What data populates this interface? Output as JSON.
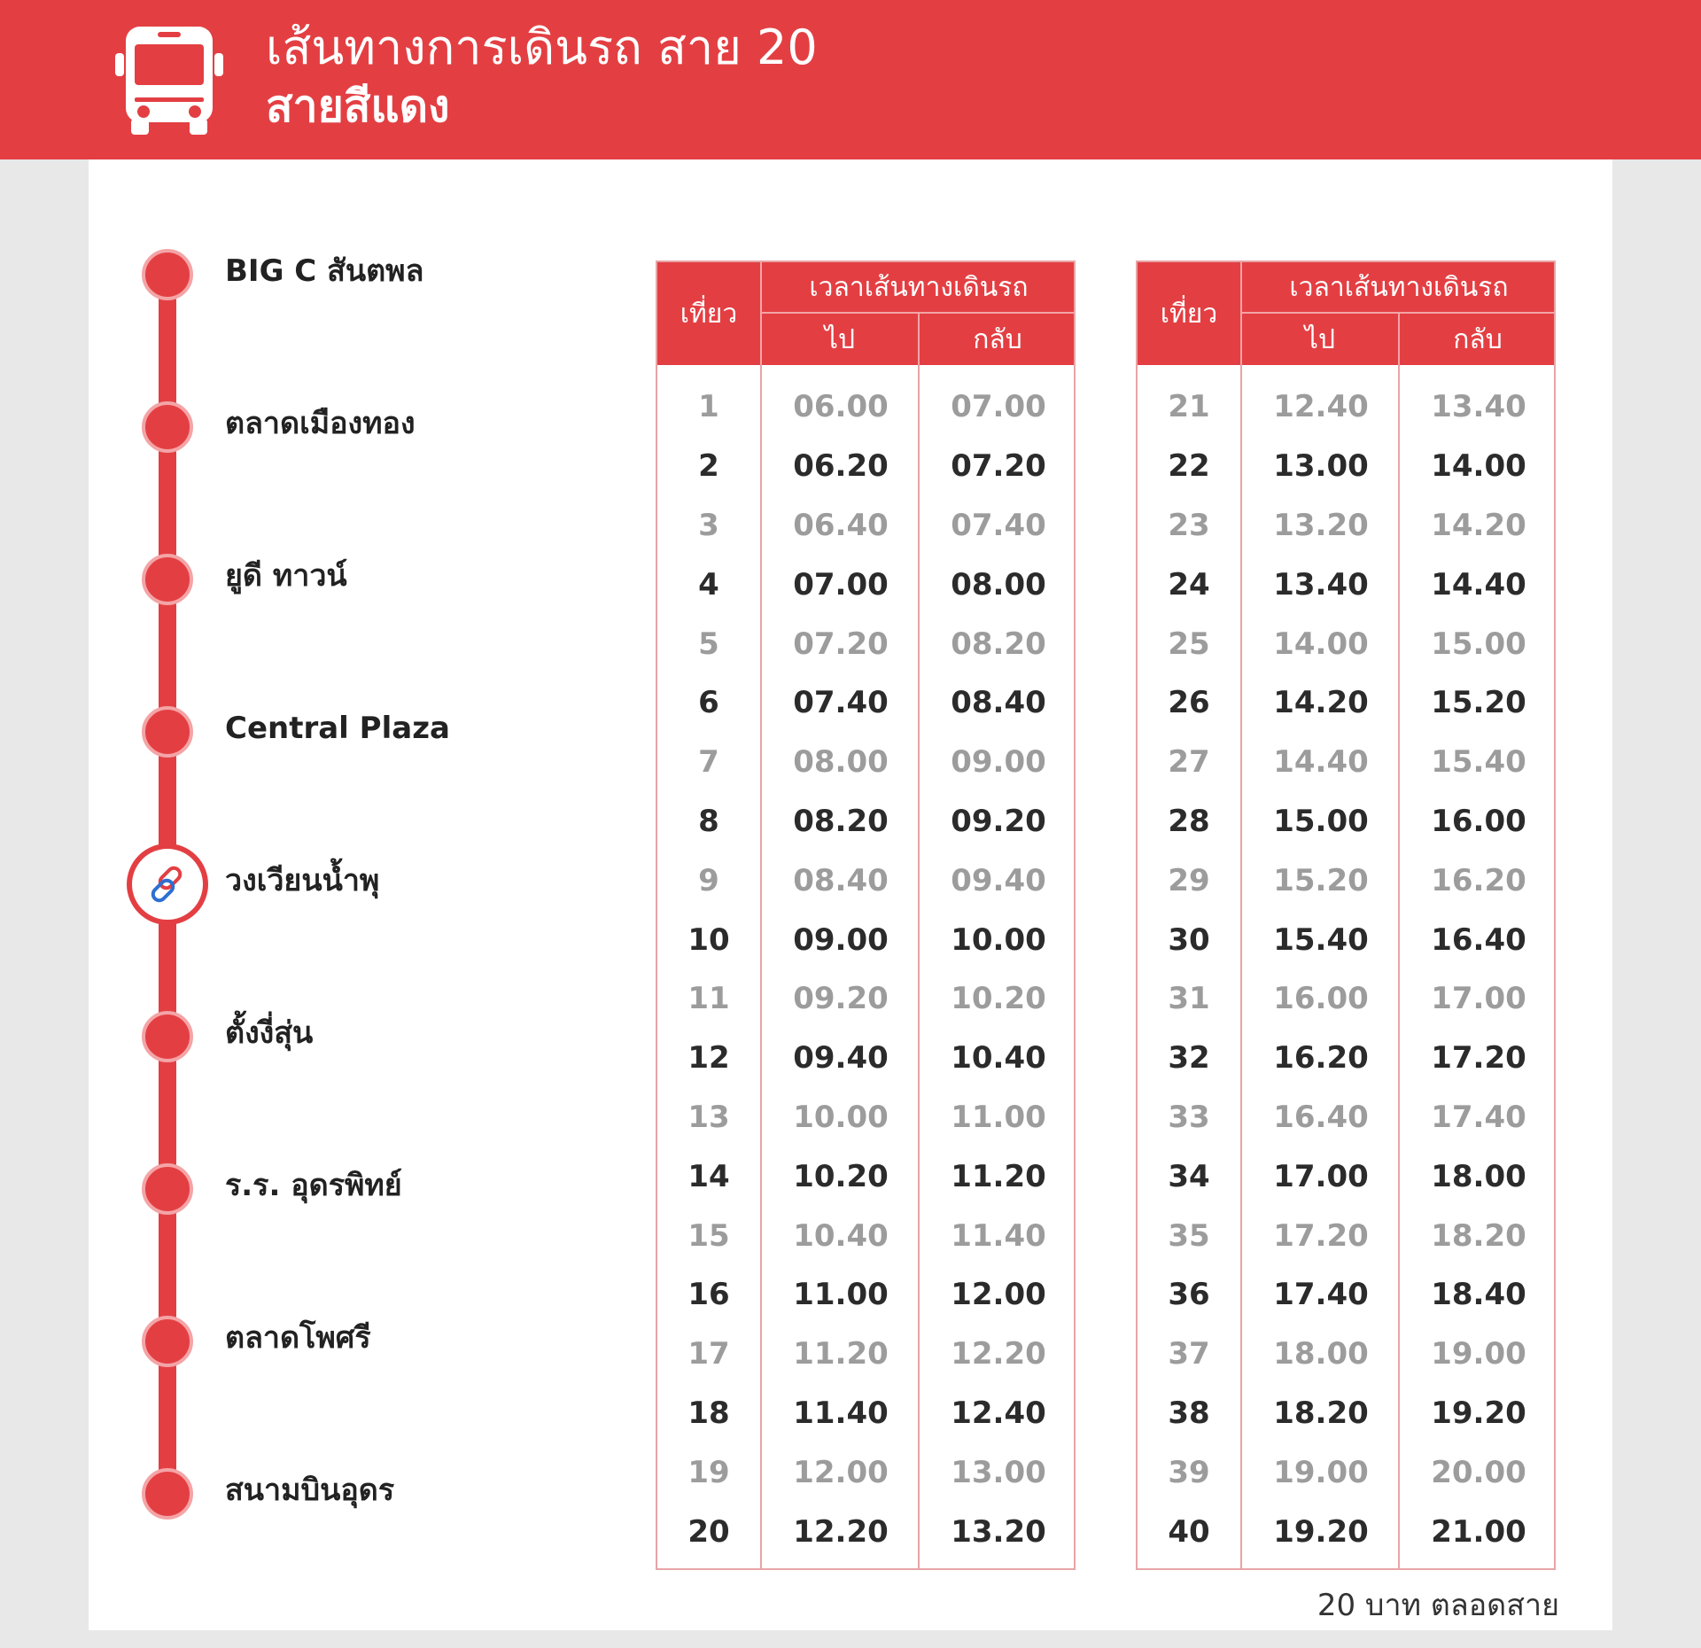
{
  "header": {
    "title": "เส้นทางการเดินรถ สาย 20",
    "subtitle": "สายสีแดง"
  },
  "stops": [
    {
      "name": "BIG C สันตพล",
      "type": "dot"
    },
    {
      "name": "ตลาดเมืองทอง",
      "type": "dot"
    },
    {
      "name": "ยูดี ทาวน์",
      "type": "dot"
    },
    {
      "name": "Central Plaza",
      "type": "dot"
    },
    {
      "name": "วงเวียนน้ำพุ",
      "type": "link"
    },
    {
      "name": "ตั้งงี่สุ่น",
      "type": "dot"
    },
    {
      "name": "ร.ร. อุดรพิทย์",
      "type": "dot"
    },
    {
      "name": "ตลาดโพศรี",
      "type": "dot"
    },
    {
      "name": "สนามบินอุดร",
      "type": "dot"
    }
  ],
  "schedule_headers": {
    "trip": "เที่ยว",
    "group": "เวลาเส้นทางเดินรถ",
    "go": "ไป",
    "back": "กลับ"
  },
  "schedule_left": [
    {
      "trip": "1",
      "go": "06.00",
      "back": "07.00"
    },
    {
      "trip": "2",
      "go": "06.20",
      "back": "07.20"
    },
    {
      "trip": "3",
      "go": "06.40",
      "back": "07.40"
    },
    {
      "trip": "4",
      "go": "07.00",
      "back": "08.00"
    },
    {
      "trip": "5",
      "go": "07.20",
      "back": "08.20"
    },
    {
      "trip": "6",
      "go": "07.40",
      "back": "08.40"
    },
    {
      "trip": "7",
      "go": "08.00",
      "back": "09.00"
    },
    {
      "trip": "8",
      "go": "08.20",
      "back": "09.20"
    },
    {
      "trip": "9",
      "go": "08.40",
      "back": "09.40"
    },
    {
      "trip": "10",
      "go": "09.00",
      "back": "10.00"
    },
    {
      "trip": "11",
      "go": "09.20",
      "back": "10.20"
    },
    {
      "trip": "12",
      "go": "09.40",
      "back": "10.40"
    },
    {
      "trip": "13",
      "go": "10.00",
      "back": "11.00"
    },
    {
      "trip": "14",
      "go": "10.20",
      "back": "11.20"
    },
    {
      "trip": "15",
      "go": "10.40",
      "back": "11.40"
    },
    {
      "trip": "16",
      "go": "11.00",
      "back": "12.00"
    },
    {
      "trip": "17",
      "go": "11.20",
      "back": "12.20"
    },
    {
      "trip": "18",
      "go": "11.40",
      "back": "12.40"
    },
    {
      "trip": "19",
      "go": "12.00",
      "back": "13.00"
    },
    {
      "trip": "20",
      "go": "12.20",
      "back": "13.20"
    }
  ],
  "schedule_right": [
    {
      "trip": "21",
      "go": "12.40",
      "back": "13.40"
    },
    {
      "trip": "22",
      "go": "13.00",
      "back": "14.00"
    },
    {
      "trip": "23",
      "go": "13.20",
      "back": "14.20"
    },
    {
      "trip": "24",
      "go": "13.40",
      "back": "14.40"
    },
    {
      "trip": "25",
      "go": "14.00",
      "back": "15.00"
    },
    {
      "trip": "26",
      "go": "14.20",
      "back": "15.20"
    },
    {
      "trip": "27",
      "go": "14.40",
      "back": "15.40"
    },
    {
      "trip": "28",
      "go": "15.00",
      "back": "16.00"
    },
    {
      "trip": "29",
      "go": "15.20",
      "back": "16.20"
    },
    {
      "trip": "30",
      "go": "15.40",
      "back": "16.40"
    },
    {
      "trip": "31",
      "go": "16.00",
      "back": "17.00"
    },
    {
      "trip": "32",
      "go": "16.20",
      "back": "17.20"
    },
    {
      "trip": "33",
      "go": "16.40",
      "back": "17.40"
    },
    {
      "trip": "34",
      "go": "17.00",
      "back": "18.00"
    },
    {
      "trip": "35",
      "go": "17.20",
      "back": "18.20"
    },
    {
      "trip": "36",
      "go": "17.40",
      "back": "18.40"
    },
    {
      "trip": "37",
      "go": "18.00",
      "back": "19.00"
    },
    {
      "trip": "38",
      "go": "18.20",
      "back": "19.20"
    },
    {
      "trip": "39",
      "go": "19.00",
      "back": "20.00"
    },
    {
      "trip": "40",
      "go": "19.20",
      "back": "21.00"
    }
  ],
  "fare": "20 บาท ตลอดสาย",
  "colors": {
    "brand_red": "#e33f43",
    "row_light": "#9c9c9c",
    "row_dark": "#2b2b2b"
  },
  "icons": {
    "header": "bus-icon",
    "transfer_stop": "link-icon"
  }
}
